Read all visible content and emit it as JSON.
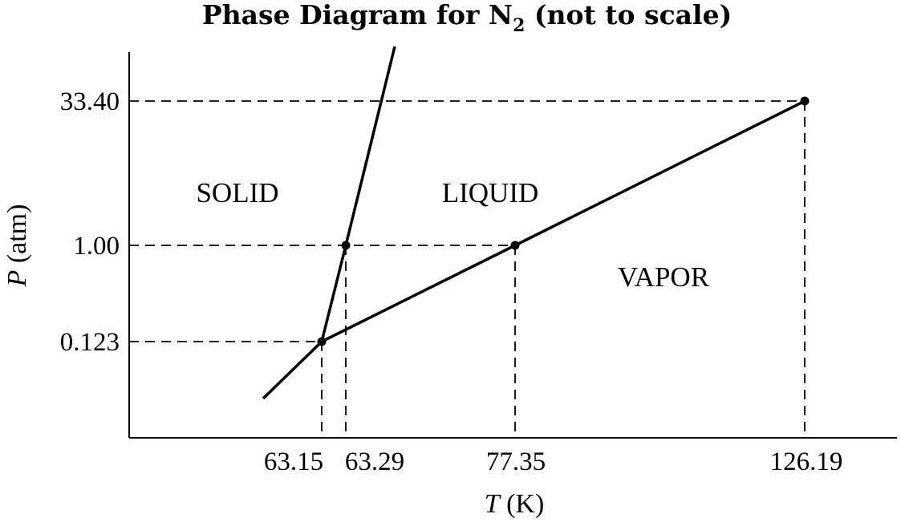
{
  "title": {
    "prefix": "Phase Diagram for N",
    "subscript": "2",
    "suffix": " (not to scale)"
  },
  "axes": {
    "x_label_var": "T",
    "x_label_unit": " (K)",
    "y_label_var": "P",
    "y_label_unit": " (atm)"
  },
  "x_ticks": [
    "63.15",
    "63.29",
    "77.35",
    "126.19"
  ],
  "y_ticks": [
    "33.40",
    "1.00",
    "0.123"
  ],
  "regions": {
    "solid": "SOLID",
    "liquid": "LIQUID",
    "vapor": "VAPOR"
  },
  "chart_data": {
    "type": "diagram",
    "scale": "not to scale",
    "points": [
      {
        "name": "triple-point",
        "T": 63.15,
        "P": 0.123
      },
      {
        "name": "normal-melting-point",
        "T": 63.29,
        "P": 1.0
      },
      {
        "name": "normal-boiling-point",
        "T": 77.35,
        "P": 1.0
      },
      {
        "name": "critical-point",
        "T": 126.19,
        "P": 33.4
      }
    ]
  }
}
